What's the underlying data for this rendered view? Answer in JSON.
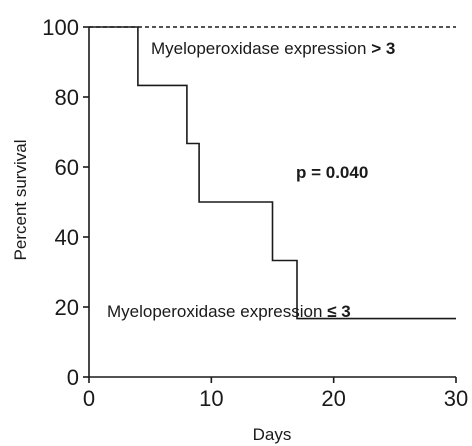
{
  "chart_data": {
    "type": "line",
    "subtype": "kaplan-meier",
    "xlabel": "Days",
    "ylabel": "Percent survival",
    "xlim": [
      0,
      30
    ],
    "ylim": [
      0,
      100
    ],
    "x_ticks": [
      "0",
      "10",
      "20",
      "30"
    ],
    "y_ticks": [
      "0",
      "20",
      "40",
      "60",
      "80",
      "100"
    ],
    "grid": false,
    "series": [
      {
        "name_prefix": "Myeloperoxidase expression",
        "name_bold": "> 3",
        "line_style": "dashed",
        "points": [
          [
            0,
            100
          ],
          [
            30,
            100
          ]
        ]
      },
      {
        "name_prefix": "Myeloperoxidase expression",
        "name_bold": "≤ 3",
        "line_style": "solid",
        "points": [
          [
            0,
            100
          ],
          [
            4,
            100
          ],
          [
            4,
            83.3
          ],
          [
            8,
            83.3
          ],
          [
            8,
            66.7
          ],
          [
            9,
            66.7
          ],
          [
            9,
            50
          ],
          [
            15,
            50
          ],
          [
            15,
            33.3
          ],
          [
            17,
            33.3
          ],
          [
            17,
            16.7
          ],
          [
            30,
            16.7
          ]
        ]
      }
    ],
    "annotation": "p = 0.040"
  }
}
